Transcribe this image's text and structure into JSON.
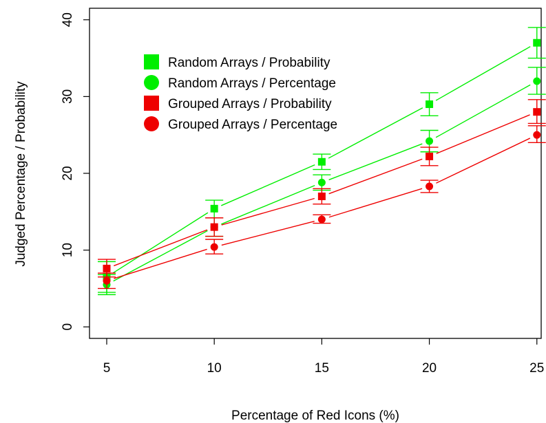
{
  "chart_data": {
    "type": "line",
    "title": "",
    "xlabel": "Percentage of Red Icons (%)",
    "ylabel": "Judged Percentage / Probability",
    "x": [
      5,
      10,
      15,
      20,
      25
    ],
    "x_ticks": [
      "5",
      "10",
      "15",
      "20",
      "25"
    ],
    "y_ticks": [
      "0",
      "10",
      "20",
      "30",
      "40"
    ],
    "xlim": [
      4.2,
      25.2
    ],
    "ylim": [
      -1.5,
      41.5
    ],
    "grid": false,
    "legend_position": "top-left",
    "series": [
      {
        "name": "Random Arrays / Probability",
        "color": "#00ee00",
        "marker": "square",
        "values": [
          6.5,
          15.4,
          21.5,
          29.0,
          37.0
        ],
        "err_low": [
          4.5,
          14.2,
          20.5,
          27.5,
          35.0
        ],
        "err_high": [
          8.5,
          16.5,
          22.5,
          30.5,
          39.0
        ]
      },
      {
        "name": "Random Arrays / Percentage",
        "color": "#00ee00",
        "marker": "circle",
        "values": [
          5.5,
          13.0,
          18.8,
          24.2,
          32.0
        ],
        "err_low": [
          4.2,
          11.8,
          17.8,
          22.8,
          30.3
        ],
        "err_high": [
          6.8,
          14.2,
          19.8,
          25.6,
          33.8
        ]
      },
      {
        "name": "Grouped Arrays / Probability",
        "color": "#ee0000",
        "marker": "square",
        "values": [
          7.6,
          13.0,
          17.0,
          22.2,
          28.0
        ],
        "err_low": [
          6.5,
          11.8,
          16.0,
          21.0,
          26.5
        ],
        "err_high": [
          8.8,
          14.2,
          18.0,
          23.4,
          29.6
        ]
      },
      {
        "name": "Grouped Arrays / Percentage",
        "color": "#ee0000",
        "marker": "circle",
        "values": [
          6.0,
          10.4,
          14.0,
          18.3,
          25.0
        ],
        "err_low": [
          5.0,
          9.5,
          13.5,
          17.5,
          24.0
        ],
        "err_high": [
          7.0,
          11.4,
          14.6,
          19.1,
          26.2
        ]
      }
    ]
  }
}
